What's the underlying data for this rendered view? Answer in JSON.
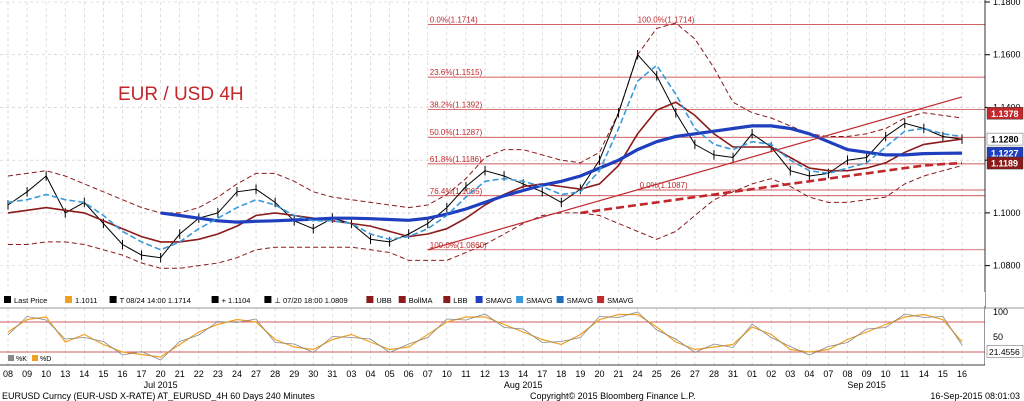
{
  "chart_title": "EUR / USD 4H",
  "legend": {
    "items": [
      {
        "icon": "candle-icon",
        "label": "Last Price",
        "color": "#000000"
      },
      {
        "icon": "square-icon",
        "label": "1.1011",
        "color": "#f0a020"
      },
      {
        "icon": "high-marker-icon",
        "label": "T 08/24 14:00 1.1714",
        "color": "#000000"
      },
      {
        "icon": "close-marker-icon",
        "label": "+ 1.1104",
        "color": "#000000"
      },
      {
        "icon": "low-marker-icon",
        "label": "⊥ 07/20 18:00 1.0809",
        "color": "#000000"
      },
      {
        "icon": "ubb-icon",
        "label": "UBB",
        "color": "#8b1a1a"
      },
      {
        "icon": "bollma-icon",
        "label": "BollMA",
        "color": "#8b1a1a"
      },
      {
        "icon": "lbb-icon",
        "label": "LBB",
        "color": "#8b1a1a"
      },
      {
        "icon": "smavg-icon",
        "label": "SMAVG",
        "color": "#1f3fbf"
      },
      {
        "icon": "smavg-icon",
        "label": "SMAVG",
        "color": "#3a9ad9"
      },
      {
        "icon": "smavg-icon",
        "label": "SMAVG",
        "color": "#1f6fbf"
      },
      {
        "icon": "smavg-icon",
        "label": "SMAVG",
        "color": "#c0282c"
      }
    ],
    "sub_items": [
      {
        "icon": "k-line-icon",
        "label": "%K",
        "color": "#888888"
      },
      {
        "icon": "d-line-icon",
        "label": "%D",
        "color": "#f0a020"
      }
    ]
  },
  "right_axis": {
    "ticks": [
      "1.1800",
      "1.1600",
      "1.1400",
      "1.1200",
      "1.1000",
      "1.0800"
    ],
    "badges": [
      {
        "label": "1.1378",
        "value": 1.1378,
        "bg": "#c0282c",
        "fg": "#ffffff"
      },
      {
        "label": "1.1280",
        "value": 1.128,
        "bg": "#ffffff",
        "fg": "#000000"
      },
      {
        "label": "1.1227",
        "value": 1.1227,
        "bg": "#1f3fbf",
        "fg": "#ffffff"
      },
      {
        "label": "1.1189",
        "value": 1.1189,
        "bg": "#8b1a1a",
        "fg": "#ffffff"
      }
    ]
  },
  "sub_axis": {
    "ticks": [
      "100",
      "50"
    ],
    "badges": [
      {
        "label": "21.4556",
        "value": 21.4556,
        "bg": "#ffffff",
        "fg": "#000000"
      }
    ]
  },
  "x_axis": {
    "day_labels": [
      "08",
      "09",
      "10",
      "13",
      "14",
      "15",
      "16",
      "17",
      "20",
      "21",
      "22",
      "23",
      "24",
      "27",
      "28",
      "29",
      "30",
      "31",
      "03",
      "04",
      "05",
      "06",
      "07",
      "10",
      "11",
      "12",
      "13",
      "14",
      "17",
      "18",
      "19",
      "20",
      "21",
      "24",
      "25",
      "26",
      "27",
      "28",
      "31",
      "01",
      "02",
      "03",
      "04",
      "07",
      "08",
      "09",
      "10",
      "11",
      "14",
      "15",
      "16"
    ],
    "month_labels": [
      "Jul 2015",
      "Aug 2015",
      "Sep 2015"
    ]
  },
  "fibonacci": [
    {
      "label": "0.0%(1.1714)",
      "value": 1.1714
    },
    {
      "label": "100.0%(1.1714)",
      "value": 1.1714
    },
    {
      "label": "23.6%(1.1515)",
      "value": 1.1515
    },
    {
      "label": "38.2%(1.1392)",
      "value": 1.1392
    },
    {
      "label": "50.0%(1.1287)",
      "value": 1.1287
    },
    {
      "label": "61.8%(1.1186)",
      "value": 1.1186
    },
    {
      "label": "76.4%(1.1065)",
      "value": 1.1065
    },
    {
      "label": "100.0%(1.0860)",
      "value": 1.086
    },
    {
      "label": "0.0%(1.1087)",
      "value": 1.1087
    }
  ],
  "footer": {
    "left": "EURUSD Curncy (EUR-USD X-RATE) AT_EURUSD_4H 60 Days 240 Minutes",
    "center": "Copyright© 2015 Bloomberg Finance L.P.",
    "right": "16-Sep-2015 08:01:03"
  },
  "chart_data": {
    "type": "line",
    "title": "EUR / USD 4H",
    "y_range": [
      1.07,
      1.18
    ],
    "x": [
      "07-08",
      "07-09",
      "07-10",
      "07-13",
      "07-14",
      "07-15",
      "07-16",
      "07-17",
      "07-20",
      "07-21",
      "07-22",
      "07-23",
      "07-24",
      "07-27",
      "07-28",
      "07-29",
      "07-30",
      "07-31",
      "08-03",
      "08-04",
      "08-05",
      "08-06",
      "08-07",
      "08-10",
      "08-11",
      "08-12",
      "08-13",
      "08-14",
      "08-17",
      "08-18",
      "08-19",
      "08-20",
      "08-21",
      "08-24",
      "08-25",
      "08-26",
      "08-27",
      "08-28",
      "08-31",
      "09-01",
      "09-02",
      "09-03",
      "09-04",
      "09-07",
      "09-08",
      "09-09",
      "09-10",
      "09-11",
      "09-14",
      "09-15",
      "09-16"
    ],
    "series": [
      {
        "name": "Last Price",
        "color": "#000000",
        "values": [
          1.103,
          1.108,
          1.114,
          1.1,
          1.104,
          1.096,
          1.088,
          1.084,
          1.083,
          1.092,
          1.098,
          1.1,
          1.108,
          1.109,
          1.104,
          1.097,
          1.094,
          1.098,
          1.096,
          1.09,
          1.089,
          1.092,
          1.096,
          1.102,
          1.11,
          1.116,
          1.114,
          1.111,
          1.108,
          1.104,
          1.109,
          1.12,
          1.138,
          1.16,
          1.152,
          1.138,
          1.126,
          1.122,
          1.121,
          1.13,
          1.125,
          1.116,
          1.114,
          1.115,
          1.12,
          1.121,
          1.129,
          1.134,
          1.132,
          1.129,
          1.128
        ]
      },
      {
        "name": "BollMA",
        "color": "#8b1a1a",
        "values": [
          1.1,
          1.101,
          1.102,
          1.101,
          1.1,
          1.097,
          1.094,
          1.091,
          1.089,
          1.089,
          1.09,
          1.092,
          1.095,
          1.099,
          1.1,
          1.099,
          1.098,
          1.097,
          1.096,
          1.095,
          1.093,
          1.091,
          1.092,
          1.094,
          1.098,
          1.103,
          1.107,
          1.11,
          1.111,
          1.11,
          1.109,
          1.111,
          1.118,
          1.13,
          1.139,
          1.142,
          1.137,
          1.13,
          1.125,
          1.125,
          1.125,
          1.121,
          1.117,
          1.116,
          1.116,
          1.117,
          1.119,
          1.123,
          1.126,
          1.127,
          1.128
        ]
      },
      {
        "name": "SMAVG",
        "color": "#1f3fbf",
        "values": [
          null,
          null,
          null,
          null,
          null,
          null,
          null,
          null,
          1.1,
          1.099,
          1.098,
          1.097,
          1.0965,
          1.0968,
          1.097,
          1.0973,
          1.0976,
          1.098,
          1.098,
          1.0978,
          1.0975,
          1.0972,
          1.098,
          1.0995,
          1.1015,
          1.104,
          1.1065,
          1.1085,
          1.1105,
          1.112,
          1.114,
          1.117,
          1.12,
          1.124,
          1.127,
          1.129,
          1.13,
          1.131,
          1.132,
          1.133,
          1.133,
          1.132,
          1.13,
          1.127,
          1.124,
          1.123,
          1.122,
          1.122,
          1.1225,
          1.1226,
          1.1227
        ]
      },
      {
        "name": "SMAVG",
        "color": "#3a9ad9",
        "values": [
          1.104,
          1.105,
          1.107,
          1.105,
          1.104,
          1.099,
          1.093,
          1.089,
          1.086,
          1.089,
          1.094,
          1.098,
          1.102,
          1.105,
          1.103,
          1.099,
          1.097,
          1.097,
          1.096,
          1.092,
          1.09,
          1.091,
          1.094,
          1.099,
          1.106,
          1.112,
          1.113,
          1.112,
          1.11,
          1.107,
          1.108,
          1.116,
          1.132,
          1.15,
          1.156,
          1.145,
          1.132,
          1.126,
          1.124,
          1.127,
          1.126,
          1.12,
          1.116,
          1.115,
          1.117,
          1.119,
          1.125,
          1.131,
          1.132,
          1.13,
          1.129
        ]
      },
      {
        "name": "SMAVG",
        "color": "#c0282c",
        "values": [
          null,
          null,
          null,
          null,
          null,
          null,
          null,
          null,
          null,
          null,
          null,
          null,
          null,
          null,
          null,
          null,
          null,
          null,
          null,
          null,
          null,
          null,
          null,
          null,
          null,
          null,
          null,
          null,
          null,
          null,
          1.1,
          1.101,
          1.102,
          1.103,
          1.104,
          1.105,
          1.106,
          1.107,
          1.108,
          1.109,
          1.11,
          1.111,
          1.112,
          1.113,
          1.114,
          1.115,
          1.116,
          1.117,
          1.118,
          1.1185,
          1.1189
        ]
      },
      {
        "name": "UBB",
        "color": "#8b1a1a",
        "values": [
          1.114,
          1.115,
          1.116,
          1.114,
          1.111,
          1.108,
          1.105,
          1.102,
          1.1,
          1.1,
          1.102,
          1.106,
          1.111,
          1.115,
          1.115,
          1.112,
          1.108,
          1.106,
          1.105,
          1.104,
          1.103,
          1.102,
          1.103,
          1.107,
          1.113,
          1.121,
          1.124,
          1.124,
          1.122,
          1.12,
          1.119,
          1.123,
          1.138,
          1.16,
          1.17,
          1.172,
          1.166,
          1.155,
          1.142,
          1.138,
          1.136,
          1.133,
          1.13,
          1.129,
          1.129,
          1.13,
          1.132,
          1.136,
          1.138,
          1.137,
          1.136
        ]
      },
      {
        "name": "LBB",
        "color": "#8b1a1a",
        "values": [
          1.088,
          1.088,
          1.089,
          1.089,
          1.088,
          1.086,
          1.084,
          1.081,
          1.079,
          1.079,
          1.08,
          1.081,
          1.083,
          1.086,
          1.087,
          1.087,
          1.087,
          1.087,
          1.087,
          1.086,
          1.085,
          1.082,
          1.082,
          1.082,
          1.085,
          1.088,
          1.092,
          1.096,
          1.099,
          1.1,
          1.1,
          1.099,
          1.096,
          1.093,
          1.09,
          1.093,
          1.099,
          1.105,
          1.108,
          1.111,
          1.113,
          1.11,
          1.106,
          1.104,
          1.104,
          1.105,
          1.106,
          1.111,
          1.114,
          1.116,
          1.118
        ]
      }
    ],
    "trendlines": [
      {
        "from": [
          "07-07",
          1.086
        ],
        "to": [
          "09-16",
          1.144
        ],
        "color": "#c0282c"
      },
      {
        "from": [
          "08-19",
          1.1
        ],
        "to": [
          "09-16",
          1.1189
        ],
        "color": "#c0282c",
        "dashed": true
      }
    ],
    "oscillator": {
      "name": "%K / %D",
      "range": [
        0,
        100
      ],
      "values": [
        60,
        85,
        90,
        40,
        55,
        35,
        20,
        15,
        10,
        35,
        60,
        75,
        85,
        80,
        45,
        30,
        25,
        45,
        55,
        40,
        25,
        30,
        55,
        80,
        90,
        90,
        75,
        60,
        45,
        35,
        55,
        85,
        95,
        95,
        70,
        40,
        25,
        30,
        35,
        70,
        55,
        25,
        20,
        25,
        45,
        60,
        75,
        90,
        95,
        85,
        40
      ]
    }
  }
}
